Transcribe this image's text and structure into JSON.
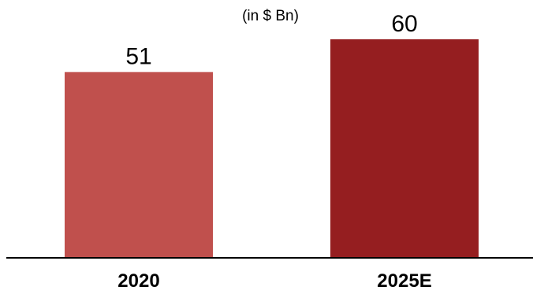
{
  "chart_data": {
    "type": "bar",
    "title": "",
    "subtitle": "(in $ Bn)",
    "xlabel": "",
    "ylabel": "",
    "categories": [
      "2020",
      "2025E"
    ],
    "values": [
      51,
      60
    ],
    "value_labels": [
      "51",
      "60"
    ],
    "ylim": [
      0,
      60
    ],
    "grid": false,
    "legend": "none",
    "colors": [
      "#c0504d",
      "#951e20"
    ],
    "axis_color": "#000000"
  }
}
